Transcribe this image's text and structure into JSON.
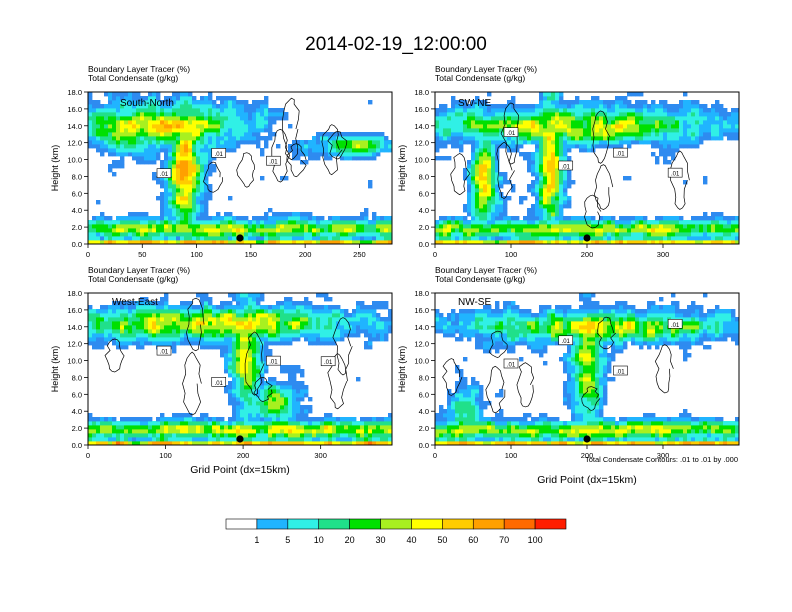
{
  "chart_data": {
    "type": "heatmap",
    "title": "2014-02-19_12:00:00",
    "variable_label_1": "Boundary Layer Tracer   (%)",
    "variable_label_2": "Total Condensate   (g/kg)",
    "ylabel": "Height (km)",
    "xlabel": "Grid Point (dx=15km)",
    "contour_note": "Total Condensate Contours: .01 to .01 by .000",
    "contour_label": ".01",
    "ylim": [
      0,
      18
    ],
    "yticks": [
      "0.0",
      "2.0",
      "4.0",
      "6.0",
      "8.0",
      "10.0",
      "12.0",
      "14.0",
      "16.0",
      "18.0"
    ],
    "colorbar": {
      "labels": [
        "1",
        "5",
        "10",
        "20",
        "30",
        "40",
        "50",
        "60",
        "70",
        "100"
      ],
      "colors": [
        "#ffffff",
        "#2e8bf0",
        "#20b4ff",
        "#30f0e6",
        "#20e08a",
        "#00e000",
        "#a8f020",
        "#ffff00",
        "#ffcc00",
        "#ffa000",
        "#ff6a00",
        "#ff1e00"
      ]
    },
    "panels": [
      {
        "label": "South-North",
        "xmax": 280,
        "xticks": [
          0,
          50,
          100,
          150,
          200,
          250
        ]
      },
      {
        "label": "SW-NE",
        "xmax": 400,
        "xticks": [
          0,
          100,
          200,
          300
        ]
      },
      {
        "label": "West-East",
        "xmax": 392,
        "xticks": [
          0,
          100,
          200,
          300
        ]
      },
      {
        "label": "NW-SE",
        "xmax": 400,
        "xticks": [
          0,
          100,
          200,
          300
        ]
      }
    ]
  }
}
